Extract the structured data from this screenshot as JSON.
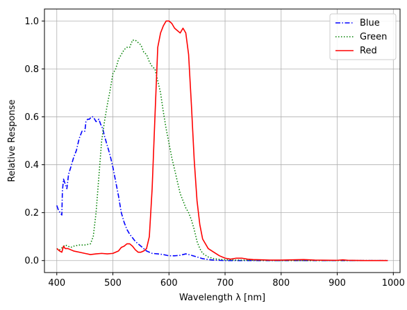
{
  "chart_data": {
    "type": "line",
    "title": "",
    "xlabel": "Wavelength λ [nm]",
    "ylabel": "Relative Response",
    "xlim": [
      378,
      1012
    ],
    "ylim": [
      -0.05,
      1.05
    ],
    "xticks": [
      400,
      500,
      600,
      700,
      800,
      900,
      1000
    ],
    "yticks": [
      0.0,
      0.2,
      0.4,
      0.6,
      0.8,
      1.0
    ],
    "xtick_labels": [
      "400",
      "500",
      "600",
      "700",
      "800",
      "900",
      "1000"
    ],
    "ytick_labels": [
      "0.0",
      "0.2",
      "0.4",
      "0.6",
      "0.8",
      "1.0"
    ],
    "grid": true,
    "legend_position": "top-right",
    "series": [
      {
        "name": "Blue",
        "color": "#0000ff",
        "style": "dashdot",
        "x": [
          400,
          403,
          406,
          409,
          410,
          412,
          415,
          418,
          421,
          425,
          430,
          435,
          440,
          445,
          450,
          452,
          455,
          458,
          462,
          465,
          470,
          475,
          478,
          482,
          485,
          490,
          495,
          500,
          505,
          510,
          515,
          520,
          525,
          530,
          540,
          550,
          560,
          570,
          580,
          590,
          600,
          610,
          620,
          630,
          640,
          650,
          660,
          670,
          680,
          690,
          700,
          750,
          800,
          850,
          900,
          950,
          990
        ],
        "y": [
          0.23,
          0.21,
          0.2,
          0.19,
          0.29,
          0.34,
          0.32,
          0.3,
          0.36,
          0.39,
          0.43,
          0.46,
          0.51,
          0.54,
          0.54,
          0.58,
          0.59,
          0.59,
          0.6,
          0.6,
          0.58,
          0.59,
          0.57,
          0.55,
          0.52,
          0.48,
          0.44,
          0.39,
          0.33,
          0.27,
          0.2,
          0.16,
          0.13,
          0.11,
          0.08,
          0.06,
          0.04,
          0.03,
          0.028,
          0.025,
          0.02,
          0.02,
          0.022,
          0.028,
          0.022,
          0.015,
          0.008,
          0.004,
          0.002,
          0.001,
          0.0,
          0.0,
          0.0,
          0.0,
          0.0,
          0.0,
          0.0
        ]
      },
      {
        "name": "Green",
        "color": "#008000",
        "style": "dotted",
        "x": [
          400,
          405,
          410,
          415,
          420,
          425,
          430,
          440,
          450,
          460,
          465,
          470,
          475,
          480,
          485,
          490,
          495,
          500,
          505,
          510,
          515,
          520,
          525,
          530,
          535,
          540,
          545,
          550,
          555,
          560,
          565,
          570,
          575,
          580,
          585,
          590,
          595,
          600,
          605,
          610,
          615,
          620,
          625,
          630,
          635,
          640,
          645,
          650,
          655,
          660,
          670,
          680,
          690,
          700,
          720,
          750,
          800,
          850,
          900,
          950,
          990
        ],
        "y": [
          0.05,
          0.045,
          0.055,
          0.065,
          0.06,
          0.055,
          0.06,
          0.065,
          0.065,
          0.07,
          0.1,
          0.2,
          0.35,
          0.5,
          0.58,
          0.65,
          0.71,
          0.78,
          0.8,
          0.84,
          0.86,
          0.88,
          0.89,
          0.89,
          0.92,
          0.92,
          0.91,
          0.9,
          0.87,
          0.86,
          0.83,
          0.81,
          0.8,
          0.75,
          0.7,
          0.62,
          0.55,
          0.49,
          0.43,
          0.38,
          0.33,
          0.28,
          0.25,
          0.22,
          0.2,
          0.17,
          0.13,
          0.08,
          0.05,
          0.03,
          0.015,
          0.008,
          0.005,
          0.003,
          0.002,
          0.001,
          0.0,
          0.0,
          0.0,
          0.0,
          0.0
        ]
      },
      {
        "name": "Red",
        "color": "#ff0000",
        "style": "solid",
        "x": [
          400,
          405,
          409,
          412,
          415,
          420,
          425,
          430,
          440,
          450,
          460,
          470,
          480,
          490,
          500,
          510,
          515,
          520,
          525,
          530,
          535,
          540,
          545,
          550,
          555,
          560,
          565,
          570,
          575,
          580,
          585,
          590,
          595,
          600,
          605,
          610,
          615,
          620,
          625,
          630,
          635,
          640,
          645,
          650,
          655,
          660,
          670,
          680,
          690,
          700,
          710,
          720,
          730,
          740,
          750,
          780,
          800,
          840,
          860,
          900,
          910,
          920,
          950,
          990
        ],
        "y": [
          0.05,
          0.04,
          0.035,
          0.06,
          0.05,
          0.05,
          0.045,
          0.04,
          0.035,
          0.03,
          0.025,
          0.028,
          0.03,
          0.028,
          0.03,
          0.04,
          0.055,
          0.06,
          0.07,
          0.07,
          0.06,
          0.045,
          0.035,
          0.035,
          0.04,
          0.05,
          0.1,
          0.3,
          0.6,
          0.89,
          0.95,
          0.98,
          1.0,
          1.0,
          0.99,
          0.97,
          0.96,
          0.95,
          0.97,
          0.95,
          0.86,
          0.65,
          0.42,
          0.25,
          0.15,
          0.09,
          0.05,
          0.035,
          0.02,
          0.01,
          0.006,
          0.01,
          0.01,
          0.006,
          0.004,
          0.002,
          0.002,
          0.004,
          0.002,
          0.001,
          0.003,
          0.001,
          0.0,
          0.0
        ]
      }
    ]
  }
}
